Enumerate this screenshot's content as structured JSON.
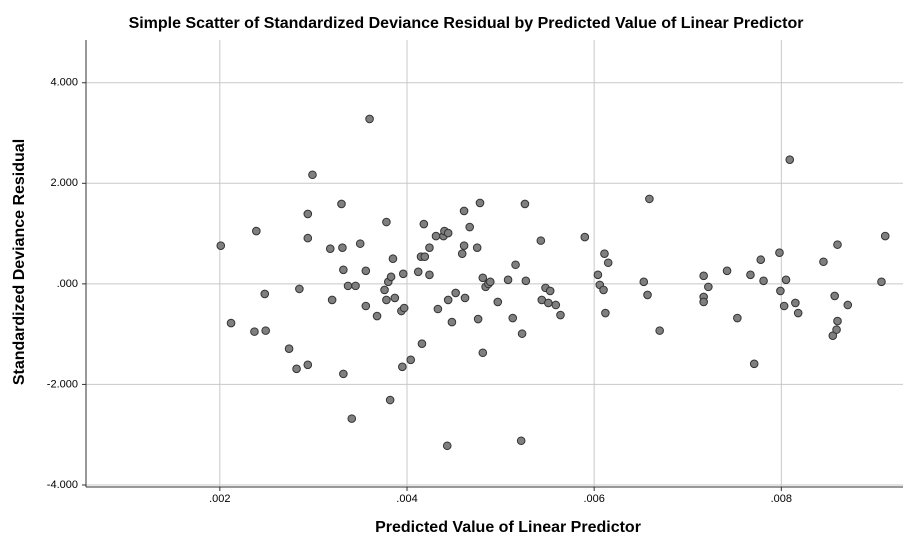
{
  "chart_data": {
    "type": "scatter",
    "title": "Simple Scatter of Standardized Deviance Residual by Predicted Value of Linear Predictor",
    "x_label": "Predicted Value of Linear Predictor",
    "y_label": "Standardized Deviance Residual",
    "color": "#7f7f7f",
    "grid": true,
    "xlim": [
      0.00057,
      0.0093
    ],
    "ylim": [
      -4.04,
      4.85
    ],
    "xticks": [
      {
        "value": 0.002,
        "label": ".002"
      },
      {
        "value": 0.004,
        "label": ".004"
      },
      {
        "value": 0.006,
        "label": ".006"
      },
      {
        "value": 0.008,
        "label": ".008"
      }
    ],
    "yticks": [
      {
        "value": -4,
        "label": "-4.000"
      },
      {
        "value": -2,
        "label": "-2.000"
      },
      {
        "value": 0,
        "label": ".000"
      },
      {
        "value": 2,
        "label": "2.000"
      },
      {
        "value": 4,
        "label": "4.000"
      }
    ],
    "x": [
      0.00201,
      0.00212,
      0.00239,
      0.00237,
      0.00248,
      0.00249,
      0.00274,
      0.00282,
      0.00285,
      0.00294,
      0.00294,
      0.00294,
      0.00299,
      0.00318,
      0.0032,
      0.0033,
      0.00331,
      0.00332,
      0.00332,
      0.00337,
      0.00341,
      0.00345,
      0.0035,
      0.00356,
      0.0036,
      0.00356,
      0.00368,
      0.00376,
      0.00378,
      0.00378,
      0.0038,
      0.00382,
      0.00383,
      0.00385,
      0.00387,
      0.00394,
      0.00395,
      0.00396,
      0.00397,
      0.00404,
      0.00412,
      0.00415,
      0.00416,
      0.00418,
      0.00419,
      0.00424,
      0.00424,
      0.00431,
      0.00433,
      0.00439,
      0.0044,
      0.00443,
      0.00444,
      0.00444,
      0.00448,
      0.00452,
      0.00459,
      0.00461,
      0.00461,
      0.00462,
      0.00467,
      0.00475,
      0.00476,
      0.00478,
      0.00481,
      0.00481,
      0.00484,
      0.00487,
      0.00489,
      0.00497,
      0.00508,
      0.00513,
      0.00516,
      0.00522,
      0.00523,
      0.00526,
      0.00527,
      0.00543,
      0.00544,
      0.00548,
      0.00551,
      0.00553,
      0.00559,
      0.00564,
      0.0059,
      0.00604,
      0.00606,
      0.0061,
      0.00611,
      0.00612,
      0.00615,
      0.00653,
      0.00657,
      0.00659,
      0.0067,
      0.00717,
      0.00717,
      0.00717,
      0.00722,
      0.00742,
      0.00753,
      0.00767,
      0.00771,
      0.00778,
      0.00781,
      0.00798,
      0.00799,
      0.00803,
      0.00805,
      0.00809,
      0.00815,
      0.00818,
      0.00845,
      0.00855,
      0.00857,
      0.00859,
      0.0086,
      0.0086,
      0.00871,
      0.00907,
      0.00911
    ],
    "values": [
      0.76,
      -0.78,
      1.05,
      -0.95,
      -0.2,
      -0.93,
      -1.29,
      -1.69,
      -0.1,
      1.39,
      0.91,
      -1.61,
      2.17,
      0.7,
      -0.32,
      1.59,
      0.72,
      0.28,
      -1.79,
      -0.04,
      -2.68,
      -0.04,
      0.8,
      -0.44,
      3.28,
      0.26,
      -0.64,
      -0.12,
      1.23,
      -0.32,
      0.04,
      -2.31,
      0.14,
      0.5,
      -0.28,
      -0.54,
      -1.65,
      0.2,
      -0.48,
      -1.51,
      0.24,
      0.54,
      -1.19,
      1.19,
      0.54,
      0.72,
      0.18,
      0.95,
      -0.5,
      0.95,
      1.05,
      -3.22,
      1.01,
      -0.32,
      -0.76,
      -0.18,
      0.6,
      1.45,
      0.76,
      -0.28,
      1.13,
      0.72,
      -0.7,
      1.61,
      -1.37,
      0.12,
      -0.06,
      0.0,
      0.04,
      -0.36,
      0.08,
      -0.68,
      0.38,
      -3.12,
      -0.99,
      1.59,
      0.06,
      0.86,
      -0.32,
      -0.08,
      -0.38,
      -0.14,
      -0.42,
      -0.62,
      0.93,
      0.18,
      -0.02,
      -0.12,
      0.6,
      -0.58,
      0.42,
      0.04,
      -0.22,
      1.69,
      -0.93,
      0.16,
      -0.26,
      -0.36,
      -0.06,
      0.26,
      -0.68,
      0.18,
      -1.59,
      0.48,
      0.06,
      0.62,
      -0.14,
      -0.44,
      0.08,
      2.47,
      -0.38,
      -0.58,
      0.44,
      -1.03,
      -0.24,
      -0.91,
      0.78,
      -0.74,
      -0.42,
      0.04,
      0.95
    ]
  }
}
